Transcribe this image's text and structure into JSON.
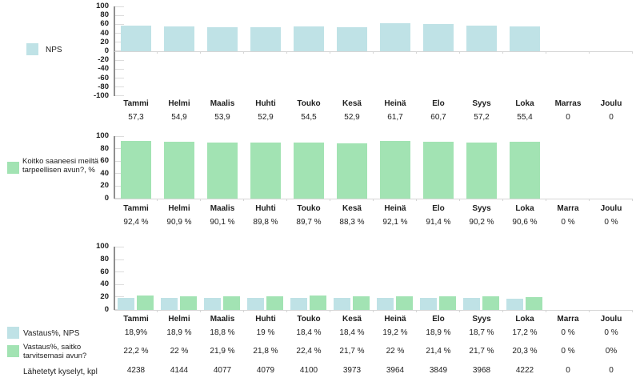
{
  "colors": {
    "series_blue": "#bfe2e6",
    "series_green": "#a2e3b3",
    "axis": "#8f8f8f",
    "tick": "#dcdcdc",
    "baseline": "#d6d6d6",
    "text": "#202020"
  },
  "chart_data": [
    {
      "type": "bar",
      "legend": "NPS",
      "series_color": "#bfe2e6",
      "categories": [
        "Tammi",
        "Helmi",
        "Maalis",
        "Huhti",
        "Touko",
        "Kesä",
        "Heinä",
        "Elo",
        "Syys",
        "Loka",
        "Marras",
        "Joulu"
      ],
      "values": [
        57.3,
        54.9,
        53.9,
        52.9,
        54.5,
        52.9,
        61.7,
        60.7,
        57.2,
        55.4,
        0,
        0
      ],
      "value_labels": [
        "57,3",
        "54,9",
        "53,9",
        "52,9",
        "54,5",
        "52,9",
        "61,7",
        "60,7",
        "57,2",
        "55,4",
        "0",
        "0"
      ],
      "ylim": [
        -100,
        100
      ],
      "ytick_labels": [
        "100",
        "80",
        "60",
        "40",
        "20",
        "0",
        "-20",
        "-40",
        "-60",
        "-80",
        "-100"
      ],
      "xlabel": "",
      "ylabel": "",
      "grid": false,
      "legend_position": "left"
    },
    {
      "type": "bar",
      "legend": "Koitko saaneesi meiltä tarpeellisen avun?, %",
      "series_color": "#a2e3b3",
      "categories": [
        "Tammi",
        "Helmi",
        "Maalis",
        "Huhti",
        "Touko",
        "Kesä",
        "Heinä",
        "Elo",
        "Syys",
        "Loka",
        "Marra",
        "Joulu"
      ],
      "values": [
        92.4,
        90.9,
        90.1,
        89.8,
        89.7,
        88.3,
        92.1,
        91.4,
        90.2,
        90.6,
        0,
        0
      ],
      "value_labels": [
        "92,4 %",
        "90,9 %",
        "90,1 %",
        "89,8 %",
        "89,7 %",
        "88,3 %",
        "92,1 %",
        "91,4 %",
        "90,2 %",
        "90,6 %",
        "0 %",
        "0 %"
      ],
      "ylim": [
        0,
        100
      ],
      "ytick_labels": [
        "100",
        "80",
        "60",
        "40",
        "20",
        "0"
      ],
      "xlabel": "",
      "ylabel": "",
      "grid": false,
      "legend_position": "left"
    },
    {
      "type": "bar",
      "categories": [
        "Tammi",
        "Helmi",
        "Maalis",
        "Huhti",
        "Touko",
        "Kesä",
        "Heinä",
        "Elo",
        "Syys",
        "Loka",
        "Marra",
        "Joulu"
      ],
      "series": [
        {
          "name": "Vastaus%, NPS",
          "color": "#bfe2e6",
          "values": [
            18.9,
            18.9,
            18.8,
            19,
            18.4,
            18.4,
            19.2,
            18.9,
            18.7,
            17.2,
            0,
            0
          ],
          "value_labels": [
            "18,9%",
            "18,9 %",
            "18,8 %",
            "19 %",
            "18,4 %",
            "18,4 %",
            "19,2 %",
            "18,9 %",
            "18,7 %",
            "17,2 %",
            "0 %",
            "0 %"
          ]
        },
        {
          "name": "Vastaus%, saitko tarvitsemasi avun?",
          "color": "#a2e3b3",
          "values": [
            22.2,
            22,
            21.9,
            21.8,
            22.4,
            21.7,
            22,
            21.4,
            21.7,
            20.3,
            0,
            0
          ],
          "value_labels": [
            "22,2 %",
            "22 %",
            "21,9 %",
            "21,8 %",
            "22,4 %",
            "21,7 %",
            "22 %",
            "21,4 %",
            "21,7 %",
            "20,3 %",
            "0 %",
            "0%"
          ]
        }
      ],
      "table_row": {
        "name": "Lähetetyt kyselyt, kpl",
        "value_labels": [
          "4238",
          "4144",
          "4077",
          "4079",
          "4100",
          "3973",
          "3964",
          "3849",
          "3968",
          "4222",
          "0",
          "0"
        ]
      },
      "ylim": [
        0,
        100
      ],
      "ytick_labels": [
        "100",
        "80",
        "60",
        "40",
        "20",
        "0"
      ],
      "xlabel": "",
      "ylabel": "",
      "grid": false,
      "legend_position": "left"
    }
  ]
}
